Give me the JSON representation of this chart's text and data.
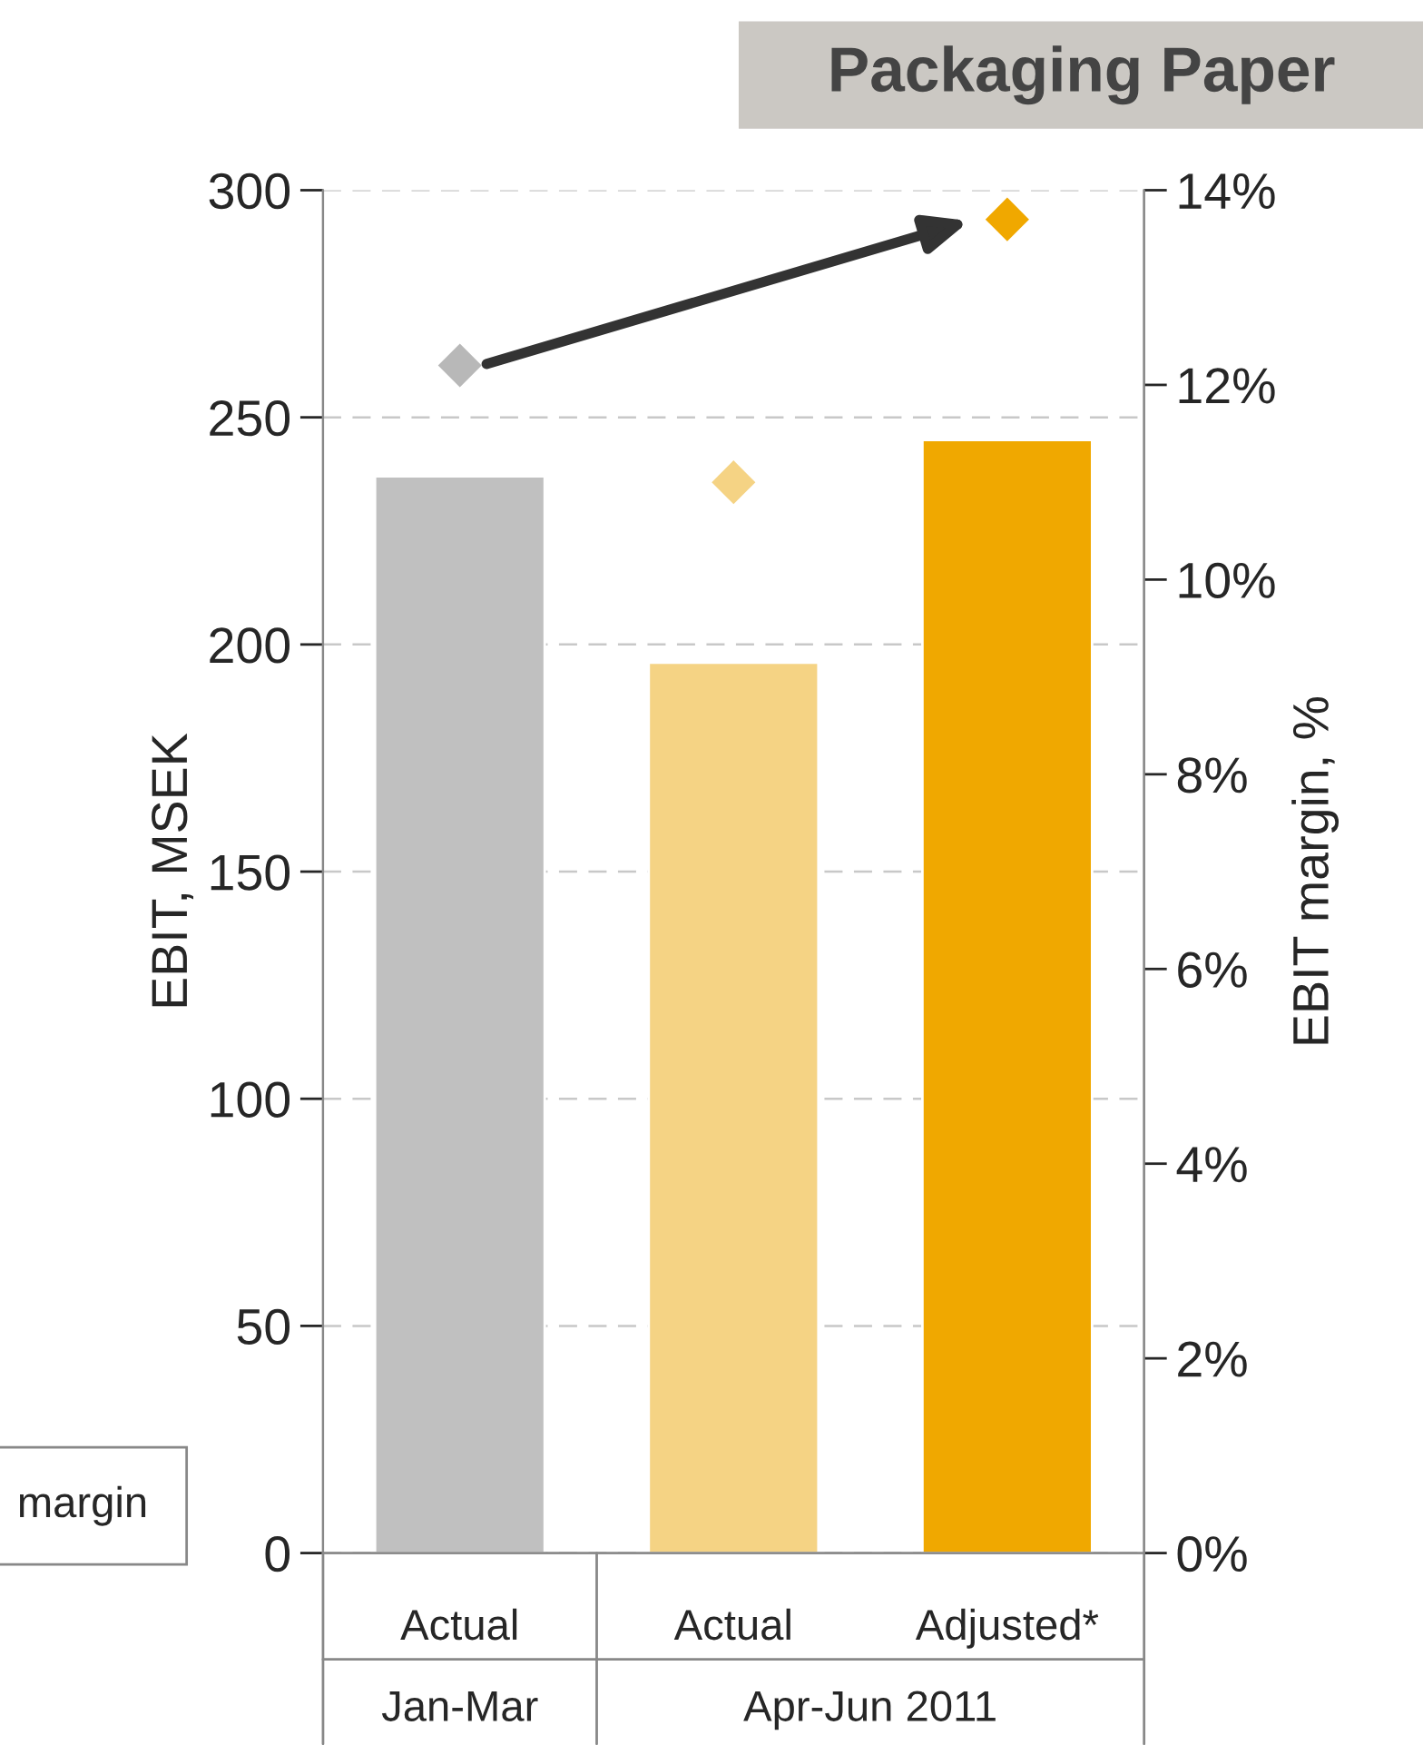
{
  "chart_data": {
    "type": "bar",
    "title": "Packaging Paper",
    "ylabel": "EBIT, MSEK",
    "y2label": "EBIT margin, %",
    "categories": [
      "Actual",
      "Actual",
      "Adjusted*"
    ],
    "series": [
      {
        "colors": [
          "#c0c0c0",
          "#f5d384",
          "#f0a800"
        ],
        "values": [
          237,
          196,
          245
        ]
      },
      {
        "type": "scatter",
        "axis": "y2",
        "marker": "diamond",
        "colors": [
          "#b8b8b8",
          "#f5d384",
          "#f0a800"
        ],
        "values": [
          12.2,
          11.0,
          13.7
        ]
      }
    ],
    "ylim": [
      0,
      300
    ],
    "yticks": [
      0,
      50,
      100,
      150,
      200,
      250,
      300
    ],
    "y2lim": [
      0,
      14
    ],
    "y2ticks": [
      {
        "value": 0,
        "label": "0%"
      },
      {
        "value": 2,
        "label": "2%"
      },
      {
        "value": 4,
        "label": "4%"
      },
      {
        "value": 6,
        "label": "6%"
      },
      {
        "value": 8,
        "label": "8%"
      },
      {
        "value": 10,
        "label": "10%"
      },
      {
        "value": 12,
        "label": "12%"
      },
      {
        "value": 14,
        "label": "14%"
      }
    ],
    "grid": "y",
    "annotations": [
      "Jan-Mar",
      "Apr-Jun 2011",
      "margin"
    ]
  }
}
